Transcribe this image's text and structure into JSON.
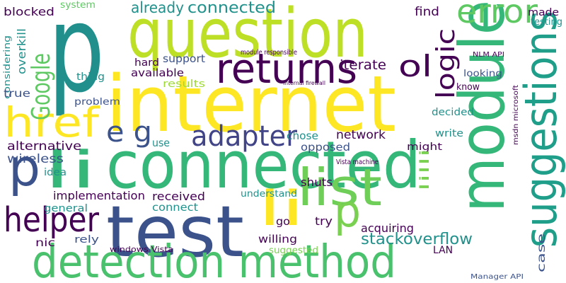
{
  "words": [
    "p",
    "question",
    "internet",
    "returns",
    "module",
    "suggestions",
    "connected",
    "test",
    "detection method",
    "href",
    "p",
    "li",
    "list",
    "li",
    "p",
    "helper",
    "adapter",
    "error",
    "Google",
    "logic",
    "ol",
    "e g",
    "stackoverflow",
    "network",
    "alternative",
    "wireless",
    "implementation",
    "already",
    "connected",
    "iterate",
    "find",
    "made",
    "testing",
    "blocked",
    "overkill",
    "considering",
    "true",
    "thing",
    "hard",
    "support",
    "available",
    "results",
    "problem",
    "use",
    "chose",
    "opposed",
    "decided",
    "write",
    "might",
    "know",
    "looking",
    "idea",
    "received",
    "connect",
    "understand",
    "shuts",
    "go",
    "try",
    "acquiring",
    "general",
    "rely",
    "nic",
    "willing",
    "suggested",
    "windows Vista",
    "LAN",
    "lilli",
    "case",
    "system",
    "Manager API",
    "Vista machine",
    "msdn microsoft",
    "NLM API",
    "module responsible",
    "internal firewall"
  ]
}
